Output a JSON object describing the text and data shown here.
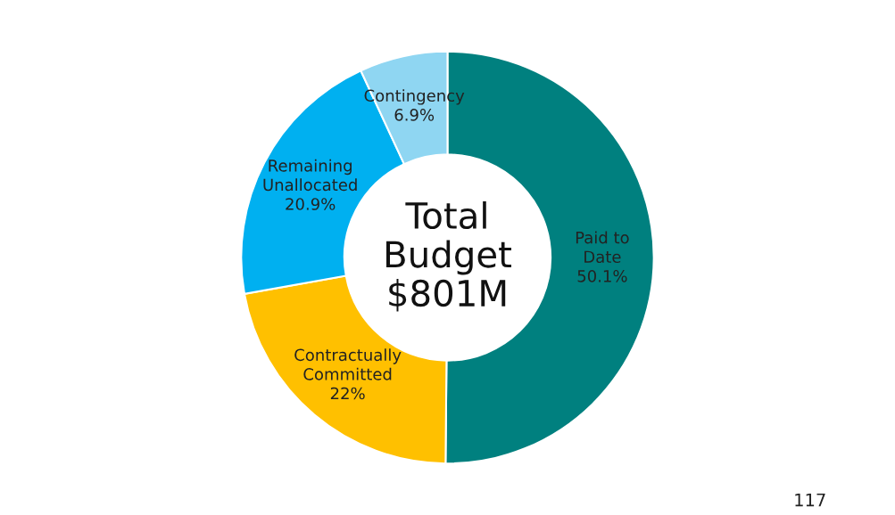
{
  "chart_data": {
    "type": "donut",
    "categories": [
      "Paid to\nDate",
      "Contractually\nCommitted",
      "Remaining\nUnallocated",
      "Contingency"
    ],
    "values": [
      50.1,
      22,
      20.9,
      6.9
    ],
    "colors": [
      "#00807f",
      "#ffc000",
      "#00b0f0",
      "#8fd6f2"
    ],
    "value_labels": [
      "50.1%",
      "22%",
      "20.9%",
      "6.9%"
    ],
    "annotations": [
      "Total\nBudget\n$801M",
      "117"
    ]
  }
}
